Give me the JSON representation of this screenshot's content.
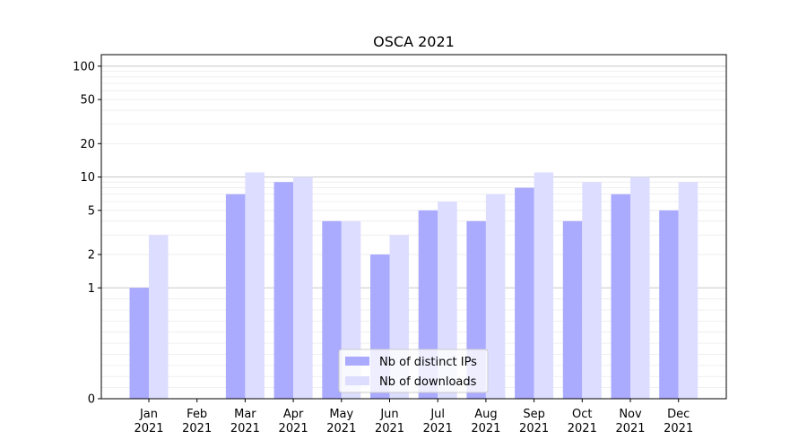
{
  "chart_data": {
    "type": "bar",
    "title": "OSCA 2021",
    "xlabel": "",
    "ylabel": "",
    "y_scale": "symlog",
    "ylim": [
      0,
      127
    ],
    "y_ticks": [
      0,
      1,
      2,
      5,
      10,
      20,
      50,
      100
    ],
    "grid": "horizontal",
    "legend_position": "lower-center",
    "categories": [
      [
        "Jan",
        "2021"
      ],
      [
        "Feb",
        "2021"
      ],
      [
        "Mar",
        "2021"
      ],
      [
        "Apr",
        "2021"
      ],
      [
        "May",
        "2021"
      ],
      [
        "Jun",
        "2021"
      ],
      [
        "Jul",
        "2021"
      ],
      [
        "Aug",
        "2021"
      ],
      [
        "Sep",
        "2021"
      ],
      [
        "Oct",
        "2021"
      ],
      [
        "Nov",
        "2021"
      ],
      [
        "Dec",
        "2021"
      ]
    ],
    "series": [
      {
        "name": "Nb of distinct IPs",
        "color": "#aaaaff",
        "values": [
          1,
          0,
          7,
          9,
          4,
          2,
          5,
          4,
          8,
          4,
          7,
          5
        ]
      },
      {
        "name": "Nb of downloads",
        "color": "#ddddff",
        "values": [
          3,
          0,
          11,
          10,
          4,
          3,
          6,
          7,
          11,
          9,
          10,
          9
        ]
      }
    ]
  }
}
